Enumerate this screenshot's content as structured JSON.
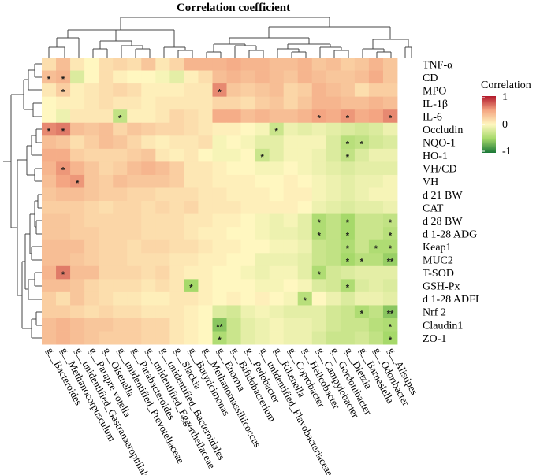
{
  "chart_data": {
    "type": "heatmap",
    "title": "Correlation coefficient",
    "legend": {
      "title": "Correlation",
      "ticks": [
        1,
        0,
        -1
      ],
      "tick_labels": [
        "1",
        "0",
        "-1"
      ],
      "placement": "right"
    },
    "rows": [
      "TNF-α",
      "CD",
      "MPO",
      "IL-1β",
      "IL-6",
      "Occludin",
      "NQO-1",
      "HO-1",
      "VH/CD",
      "VH",
      "d 21 BW",
      "CAT",
      "d 28 BW",
      "d 1-28 ADG",
      "Keap1",
      "MUC2",
      "T-SOD",
      "GSH-Px",
      "d 1-28 ADFI",
      "Nrf 2",
      "Claudin1",
      "ZO-1"
    ],
    "columns": [
      "g__Bacteroides",
      "g__Methanocorpusculum",
      "g__unidentified_Gastranaerophilales",
      "g__Parapre votella",
      "g__Olsenella",
      "g__unidentified_Prevotellaceae",
      "g__Parabacteroides",
      "g__unidentified_Eggerthellaceae",
      "g__unidentified_Bacteroidales",
      "g__Slackia",
      "g__Butyricimonas",
      "g__Methanomassiliicoccus",
      "g__Enorma",
      "g__Bifidobacterium",
      "g__Pedobacter",
      "g__unidentified_Flavobacteriaceae",
      "g__Rikenella",
      "g__Coprobacter",
      "g__Helicobacter",
      "g__Campylobacter",
      "g__Gordonibacter",
      "g__Dietzia",
      "g__Barnesiella",
      "g__Odoribacter",
      "g__Alistipes"
    ],
    "values": [
      [
        0.15,
        0.35,
        0.1,
        0.0,
        0.15,
        0.2,
        0.15,
        0.3,
        0.1,
        0.2,
        0.4,
        0.4,
        0.4,
        0.45,
        0.4,
        0.4,
        0.35,
        0.35,
        0.4,
        0.3,
        0.35,
        0.25,
        0.3,
        0.4,
        0.3
      ],
      [
        0.35,
        0.4,
        -0.2,
        0.0,
        0.15,
        0.05,
        0.0,
        0.0,
        -0.05,
        -0.15,
        0.05,
        0.15,
        0.35,
        0.4,
        0.35,
        0.4,
        0.35,
        0.3,
        0.4,
        0.35,
        0.3,
        0.3,
        0.35,
        0.45,
        0.3
      ],
      [
        0.1,
        0.25,
        0.05,
        0.1,
        0.15,
        0.2,
        0.15,
        0.05,
        0.05,
        0.05,
        0.1,
        0.1,
        0.6,
        0.3,
        0.25,
        0.3,
        0.35,
        0.2,
        0.25,
        0.4,
        0.35,
        0.3,
        0.15,
        0.25,
        0.25
      ],
      [
        0.0,
        0.05,
        0.05,
        0.1,
        0.15,
        0.1,
        0.1,
        0.05,
        0.1,
        0.1,
        0.1,
        0.1,
        0.2,
        0.2,
        0.15,
        0.25,
        0.3,
        0.2,
        0.3,
        0.4,
        0.4,
        0.35,
        0.35,
        0.4,
        0.35
      ],
      [
        0.0,
        -0.1,
        0.1,
        0.1,
        0.1,
        -0.35,
        0.05,
        0.05,
        0.1,
        0.2,
        0.15,
        0.1,
        0.45,
        0.45,
        0.35,
        0.4,
        0.35,
        0.35,
        0.4,
        0.5,
        0.45,
        0.55,
        0.45,
        0.5,
        0.6
      ],
      [
        0.6,
        0.65,
        0.35,
        0.3,
        0.35,
        0.2,
        0.3,
        0.25,
        0.2,
        0.2,
        0.15,
        0.1,
        0.05,
        0.05,
        0.0,
        -0.05,
        -0.3,
        -0.1,
        -0.15,
        -0.1,
        -0.15,
        -0.2,
        -0.25,
        -0.2,
        -0.1
      ],
      [
        0.35,
        0.3,
        0.15,
        0.25,
        0.35,
        0.3,
        0.2,
        0.1,
        0.05,
        0.1,
        0.1,
        0.15,
        -0.05,
        0.0,
        -0.05,
        -0.15,
        -0.15,
        -0.05,
        -0.05,
        -0.05,
        -0.2,
        -0.4,
        -0.35,
        -0.25,
        -0.2
      ],
      [
        0.45,
        0.45,
        0.25,
        0.2,
        0.2,
        0.2,
        0.25,
        0.3,
        0.1,
        0.05,
        0.1,
        0.0,
        -0.05,
        -0.05,
        0.0,
        -0.3,
        -0.15,
        -0.05,
        -0.05,
        -0.1,
        -0.2,
        -0.35,
        -0.2,
        -0.1,
        -0.1
      ],
      [
        0.4,
        0.55,
        0.4,
        0.3,
        0.2,
        0.25,
        0.35,
        0.4,
        0.35,
        0.25,
        0.1,
        0.1,
        0.05,
        0.0,
        0.0,
        -0.05,
        -0.05,
        0.0,
        -0.05,
        -0.1,
        -0.15,
        -0.2,
        -0.15,
        -0.15,
        -0.15
      ],
      [
        0.35,
        0.5,
        0.55,
        0.3,
        0.25,
        0.35,
        0.3,
        0.3,
        0.3,
        0.25,
        0.1,
        0.1,
        0.05,
        0.05,
        0.05,
        0.0,
        0.0,
        0.05,
        0.0,
        -0.05,
        -0.1,
        -0.15,
        -0.1,
        -0.1,
        -0.05
      ],
      [
        0.3,
        0.35,
        0.35,
        0.3,
        0.25,
        0.25,
        0.2,
        0.2,
        0.15,
        0.15,
        0.15,
        0.1,
        0.1,
        0.05,
        0.05,
        0.05,
        0.0,
        0.05,
        0.05,
        -0.05,
        -0.1,
        -0.15,
        -0.1,
        -0.05,
        -0.05
      ],
      [
        0.25,
        0.25,
        0.25,
        0.2,
        0.15,
        0.2,
        0.2,
        0.15,
        0.2,
        0.15,
        0.2,
        0.1,
        0.1,
        0.1,
        0.05,
        0.05,
        0.05,
        0.05,
        0.0,
        -0.1,
        -0.15,
        -0.2,
        -0.15,
        -0.15,
        -0.1
      ],
      [
        0.3,
        0.3,
        0.25,
        0.2,
        0.2,
        0.2,
        0.2,
        0.15,
        0.15,
        0.15,
        0.1,
        0.1,
        0.05,
        0.05,
        0.0,
        -0.05,
        -0.1,
        -0.05,
        -0.15,
        -0.45,
        -0.35,
        -0.5,
        -0.3,
        -0.3,
        -0.35
      ],
      [
        0.3,
        0.3,
        0.25,
        0.25,
        0.2,
        0.2,
        0.2,
        0.15,
        0.15,
        0.15,
        0.1,
        0.05,
        0.05,
        0.0,
        0.0,
        -0.05,
        -0.1,
        -0.1,
        -0.15,
        -0.45,
        -0.35,
        -0.5,
        -0.3,
        -0.3,
        -0.4
      ],
      [
        0.35,
        0.35,
        0.35,
        0.25,
        0.2,
        0.2,
        0.15,
        0.2,
        0.2,
        0.15,
        0.15,
        0.1,
        0.05,
        0.05,
        0.0,
        0.0,
        -0.05,
        -0.05,
        -0.1,
        -0.3,
        -0.35,
        -0.45,
        -0.3,
        -0.45,
        -0.45
      ],
      [
        0.35,
        0.35,
        0.3,
        0.25,
        0.2,
        0.2,
        0.15,
        0.15,
        0.15,
        0.1,
        0.1,
        0.05,
        0.05,
        0.0,
        0.0,
        -0.1,
        -0.1,
        -0.1,
        -0.15,
        -0.3,
        -0.35,
        -0.5,
        -0.4,
        -0.4,
        -0.55
      ],
      [
        0.4,
        0.65,
        0.35,
        0.35,
        0.2,
        0.2,
        0.2,
        0.15,
        0.2,
        0.1,
        0.05,
        0.05,
        0.0,
        0.0,
        -0.05,
        -0.1,
        -0.05,
        -0.05,
        -0.15,
        -0.45,
        -0.25,
        -0.2,
        -0.15,
        -0.15,
        -0.15
      ],
      [
        0.35,
        0.35,
        0.3,
        0.2,
        0.15,
        0.15,
        0.15,
        0.1,
        0.15,
        0.1,
        -0.5,
        0.05,
        0.0,
        0.0,
        0.0,
        -0.05,
        -0.05,
        0.0,
        -0.05,
        -0.2,
        -0.25,
        -0.45,
        -0.2,
        -0.15,
        -0.2
      ],
      [
        0.25,
        0.15,
        0.3,
        0.2,
        0.15,
        0.1,
        0.1,
        0.05,
        0.05,
        0.1,
        0.1,
        0.05,
        0.0,
        0.05,
        0.0,
        0.05,
        0.0,
        -0.05,
        -0.4,
        0.0,
        -0.1,
        -0.2,
        -0.1,
        -0.1,
        -0.15
      ],
      [
        0.25,
        0.25,
        0.2,
        0.15,
        0.2,
        0.15,
        0.15,
        0.1,
        0.1,
        0.1,
        0.05,
        0.0,
        -0.2,
        -0.25,
        -0.1,
        -0.05,
        -0.1,
        -0.15,
        -0.15,
        -0.15,
        -0.25,
        -0.3,
        -0.45,
        -0.35,
        -0.6
      ],
      [
        0.35,
        0.4,
        0.35,
        0.3,
        0.3,
        0.25,
        0.25,
        0.2,
        0.2,
        0.1,
        0.05,
        0.0,
        -0.6,
        -0.3,
        -0.15,
        -0.1,
        -0.05,
        -0.1,
        -0.1,
        -0.15,
        -0.25,
        -0.3,
        -0.3,
        -0.4,
        -0.45
      ],
      [
        0.35,
        0.4,
        0.35,
        0.3,
        0.25,
        0.25,
        0.25,
        0.2,
        0.2,
        0.1,
        0.05,
        0.0,
        -0.45,
        -0.3,
        -0.15,
        -0.1,
        -0.05,
        -0.1,
        -0.1,
        -0.2,
        -0.3,
        -0.3,
        -0.25,
        -0.35,
        -0.5
      ]
    ],
    "significance": [
      [
        "",
        "",
        "",
        "",
        "",
        "",
        "",
        "",
        "",
        "",
        "",
        "",
        "",
        "",
        "",
        "",
        "",
        "",
        "",
        "",
        "",
        "",
        "",
        "",
        ""
      ],
      [
        "*",
        "*",
        "",
        "",
        "",
        "",
        "",
        "",
        "",
        "",
        "",
        "",
        "",
        "",
        "",
        "",
        "",
        "",
        "",
        "",
        "",
        "",
        "",
        "",
        ""
      ],
      [
        "",
        "*",
        "",
        "",
        "",
        "",
        "",
        "",
        "",
        "",
        "",
        "",
        "*",
        "",
        "",
        "",
        "",
        "",
        "",
        "",
        "",
        "",
        "",
        "",
        ""
      ],
      [
        "",
        "",
        "",
        "",
        "",
        "",
        "",
        "",
        "",
        "",
        "",
        "",
        "",
        "",
        "",
        "",
        "",
        "",
        "",
        "",
        "",
        "",
        "",
        "",
        ""
      ],
      [
        "",
        "",
        "",
        "",
        "",
        "*",
        "",
        "",
        "",
        "",
        "",
        "",
        "",
        "",
        "",
        "",
        "",
        "",
        "",
        "*",
        "",
        "*",
        "",
        "",
        "*"
      ],
      [
        "*",
        "*",
        "",
        "",
        "",
        "",
        "",
        "",
        "",
        "",
        "",
        "",
        "",
        "",
        "",
        "",
        "*",
        "",
        "",
        "",
        "",
        "",
        "",
        "",
        ""
      ],
      [
        "",
        "",
        "",
        "",
        "",
        "",
        "",
        "",
        "",
        "",
        "",
        "",
        "",
        "",
        "",
        "",
        "",
        "",
        "",
        "",
        "",
        "*",
        "*",
        "",
        ""
      ],
      [
        "",
        "",
        "",
        "",
        "",
        "",
        "",
        "",
        "",
        "",
        "",
        "",
        "",
        "",
        "",
        "*",
        "",
        "",
        "",
        "",
        "",
        "*",
        "",
        "",
        ""
      ],
      [
        "",
        "*",
        "",
        "",
        "",
        "",
        "",
        "",
        "",
        "",
        "",
        "",
        "",
        "",
        "",
        "",
        "",
        "",
        "",
        "",
        "",
        "",
        "",
        "",
        ""
      ],
      [
        "",
        "",
        "*",
        "",
        "",
        "",
        "",
        "",
        "",
        "",
        "",
        "",
        "",
        "",
        "",
        "",
        "",
        "",
        "",
        "",
        "",
        "",
        "",
        "",
        ""
      ],
      [
        "",
        "",
        "",
        "",
        "",
        "",
        "",
        "",
        "",
        "",
        "",
        "",
        "",
        "",
        "",
        "",
        "",
        "",
        "",
        "",
        "",
        "",
        "",
        "",
        ""
      ],
      [
        "",
        "",
        "",
        "",
        "",
        "",
        "",
        "",
        "",
        "",
        "",
        "",
        "",
        "",
        "",
        "",
        "",
        "",
        "",
        "",
        "",
        "",
        "",
        "",
        ""
      ],
      [
        "",
        "",
        "",
        "",
        "",
        "",
        "",
        "",
        "",
        "",
        "",
        "",
        "",
        "",
        "",
        "",
        "",
        "",
        "",
        "*",
        "",
        "*",
        "",
        "",
        "*"
      ],
      [
        "",
        "",
        "",
        "",
        "",
        "",
        "",
        "",
        "",
        "",
        "",
        "",
        "",
        "",
        "",
        "",
        "",
        "",
        "",
        "*",
        "",
        "*",
        "",
        "",
        "*"
      ],
      [
        "",
        "",
        "",
        "",
        "",
        "",
        "",
        "",
        "",
        "",
        "",
        "",
        "",
        "",
        "",
        "",
        "",
        "",
        "",
        "",
        "",
        "*",
        "",
        "*",
        "*"
      ],
      [
        "",
        "",
        "",
        "",
        "",
        "",
        "",
        "",
        "",
        "",
        "",
        "",
        "",
        "",
        "",
        "",
        "",
        "",
        "",
        "",
        "",
        "*",
        "*",
        "",
        "**"
      ],
      [
        "",
        "*",
        "",
        "",
        "",
        "",
        "",
        "",
        "",
        "",
        "",
        "",
        "",
        "",
        "",
        "",
        "",
        "",
        "",
        "*",
        "",
        "",
        "",
        "",
        ""
      ],
      [
        "",
        "",
        "",
        "",
        "",
        "",
        "",
        "",
        "",
        "",
        "*",
        "",
        "",
        "",
        "",
        "",
        "",
        "",
        "",
        "",
        "",
        "*",
        "",
        "",
        ""
      ],
      [
        "",
        "",
        "",
        "",
        "",
        "",
        "",
        "",
        "",
        "",
        "",
        "",
        "",
        "",
        "",
        "",
        "",
        "",
        "*",
        "",
        "",
        "",
        "",
        "",
        ""
      ],
      [
        "",
        "",
        "",
        "",
        "",
        "",
        "",
        "",
        "",
        "",
        "",
        "",
        "",
        "",
        "",
        "",
        "",
        "",
        "",
        "",
        "",
        "",
        "*",
        "",
        "**"
      ],
      [
        "",
        "",
        "",
        "",
        "",
        "",
        "",
        "",
        "",
        "",
        "",
        "",
        "**",
        "",
        "",
        "",
        "",
        "",
        "",
        "",
        "",
        "",
        "",
        "",
        "*"
      ],
      [
        "",
        "",
        "",
        "",
        "",
        "",
        "",
        "",
        "",
        "",
        "",
        "",
        "*",
        "",
        "",
        "",
        "",
        "",
        "",
        "",
        "",
        "",
        "",
        "",
        "*"
      ]
    ]
  }
}
